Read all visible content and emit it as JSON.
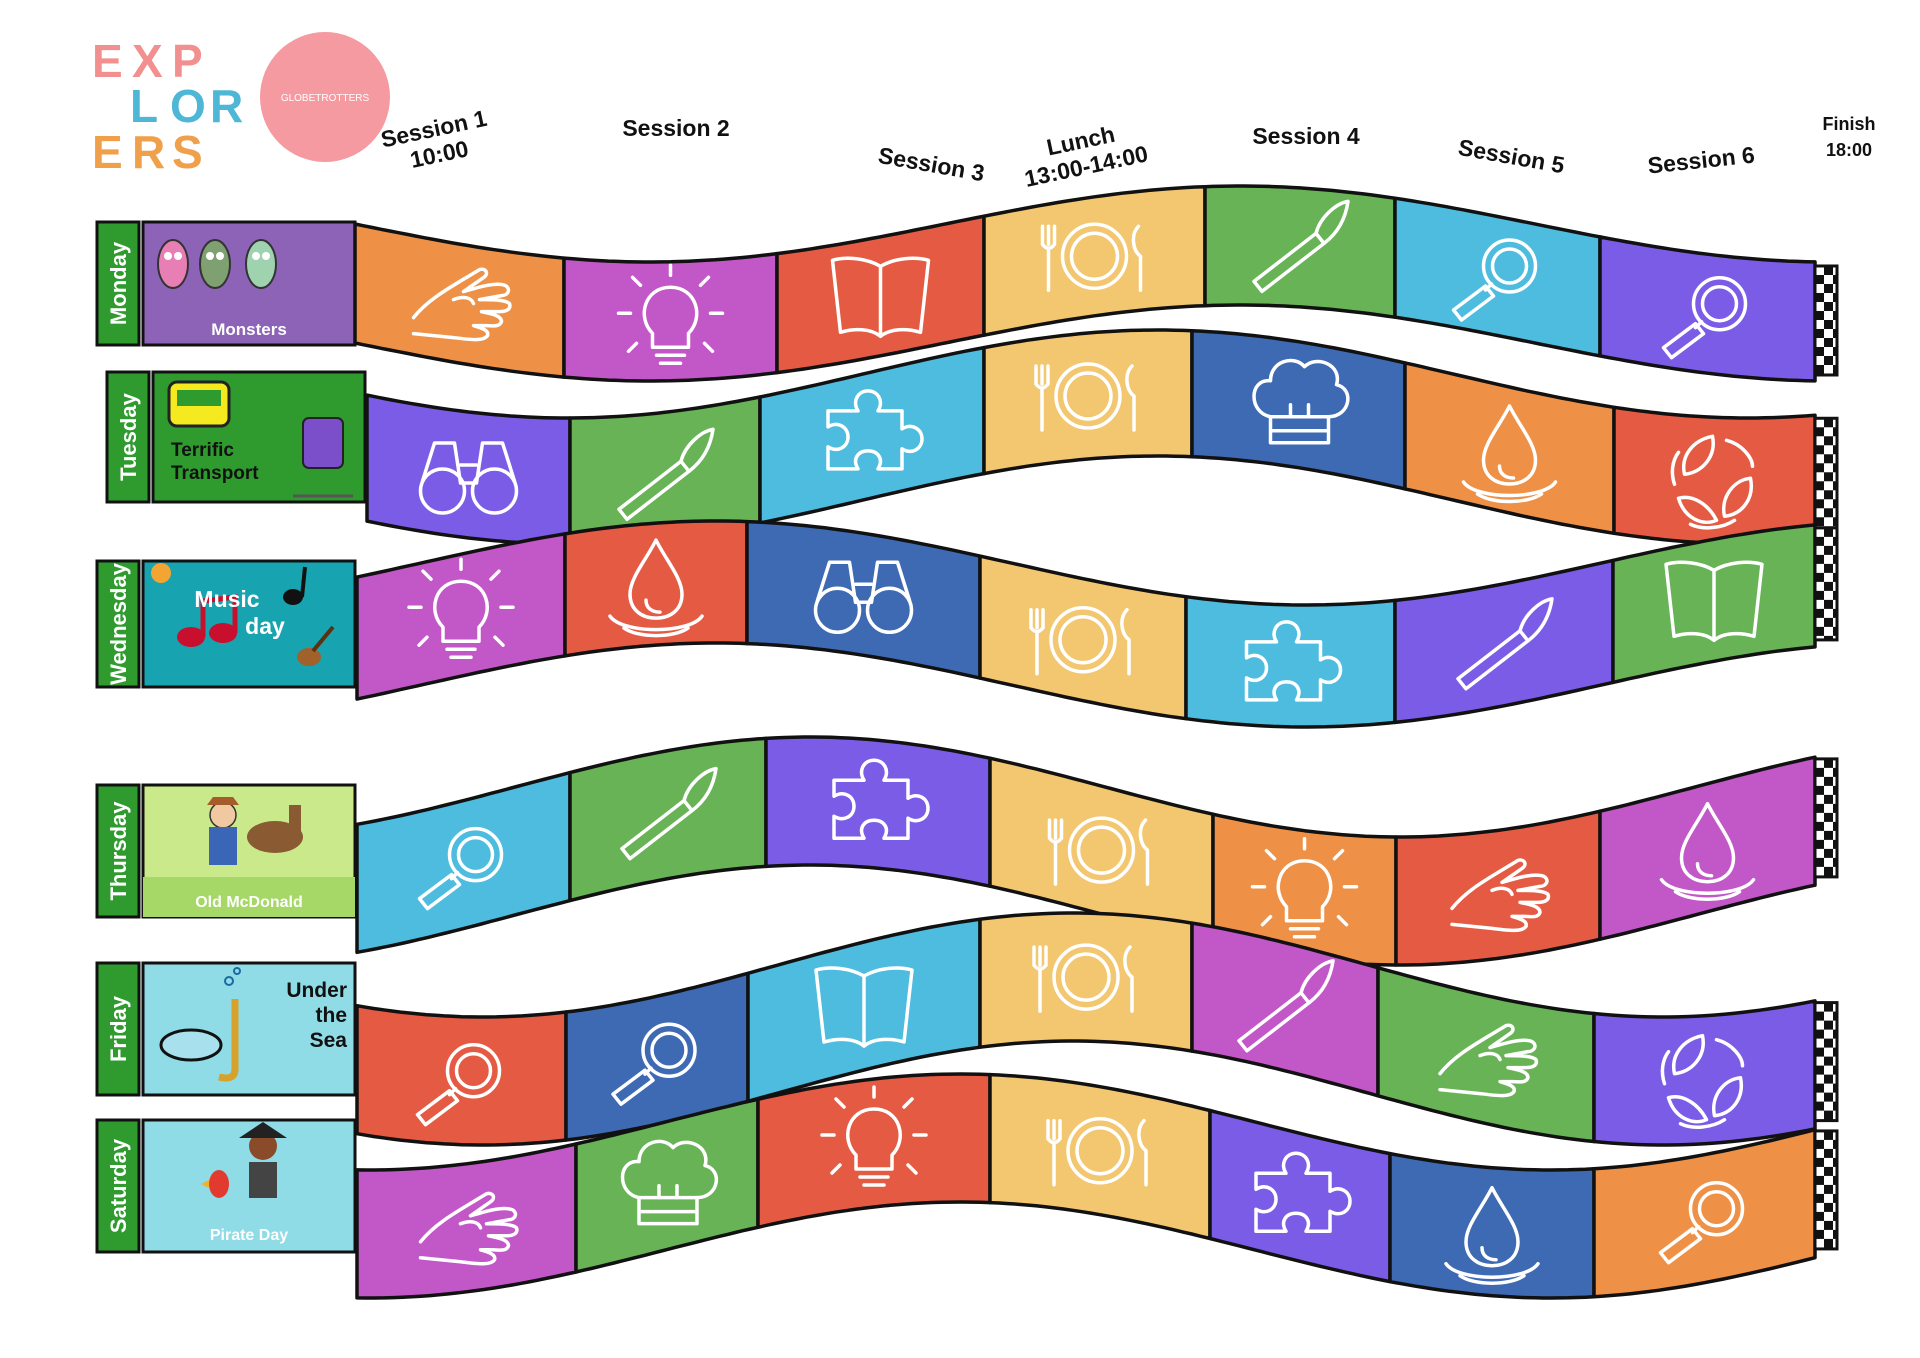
{
  "logo": {
    "rows": [
      [
        {
          "t": "E",
          "c": "#f28f8f"
        },
        {
          "t": "X",
          "c": "#f28f8f"
        },
        {
          "t": "P",
          "c": "#f28f8f"
        }
      ],
      [
        {
          "t": "L",
          "c": "#4fb7d6"
        },
        {
          "t": "O",
          "c": "#4fb7d6"
        },
        {
          "t": "R",
          "c": "#4fb7d6"
        }
      ],
      [
        {
          "t": "E",
          "c": "#f0a04b"
        },
        {
          "t": "R",
          "c": "#f0a04b"
        },
        {
          "t": "S",
          "c": "#f0a04b"
        }
      ]
    ],
    "badge_text": "GLOBETROTTERS",
    "badge_color": "#f59aa0"
  },
  "headers": [
    {
      "line1": "Session 1",
      "line2": "10:00"
    },
    {
      "line1": "Session 2",
      "line2": ""
    },
    {
      "line1": "Session 3",
      "line2": ""
    },
    {
      "line1": "Lunch",
      "line2": "13:00-14:00"
    },
    {
      "line1": "Session 4",
      "line2": ""
    },
    {
      "line1": "Session 5",
      "line2": ""
    },
    {
      "line1": "Session 6",
      "line2": ""
    },
    {
      "line1": "Finish",
      "line2": "18:00"
    }
  ],
  "colors": {
    "orange": "#ee9147",
    "purple": "#7b5ce6",
    "magenta": "#c257c8",
    "red": "#e55a43",
    "yellow": "#f3c670",
    "green": "#68b356",
    "lightblue": "#4ebcdf",
    "darkblue": "#3e69b3",
    "daygreen": "#2f9b2f"
  },
  "days": [
    {
      "name": "Monday",
      "theme": "Monsters",
      "theme_bg": "#8c63b6",
      "theme_fg": "#ffffff",
      "cells": [
        [
          "orange",
          "hand"
        ],
        [
          "magenta",
          "bulb"
        ],
        [
          "red",
          "book"
        ],
        [
          "yellow",
          "plate"
        ],
        [
          "green",
          "brush"
        ],
        [
          "lightblue",
          "magnifier"
        ],
        [
          "purple",
          "magnifier"
        ]
      ]
    },
    {
      "name": "Tuesday",
      "theme": "Terrific Transport",
      "theme_bg": "#2f9b2f",
      "theme_fg": "#111111",
      "cells": [
        [
          "purple",
          "binoculars"
        ],
        [
          "green",
          "brush"
        ],
        [
          "lightblue",
          "puzzle"
        ],
        [
          "yellow",
          "plate"
        ],
        [
          "darkblue",
          "chefhat"
        ],
        [
          "orange",
          "drop"
        ],
        [
          "red",
          "recycle"
        ]
      ]
    },
    {
      "name": "Wednesday",
      "theme": "Music day",
      "theme_bg": "#17a3b0",
      "theme_fg": "#ffffff",
      "cells": [
        [
          "magenta",
          "bulb"
        ],
        [
          "red",
          "drop"
        ],
        [
          "darkblue",
          "binoculars"
        ],
        [
          "yellow",
          "plate"
        ],
        [
          "lightblue",
          "puzzle"
        ],
        [
          "purple",
          "brush"
        ],
        [
          "green",
          "book"
        ]
      ]
    },
    {
      "name": "Thursday",
      "theme": "Old McDonald",
      "theme_bg": "#c9e98a",
      "theme_fg": "#ffffff",
      "cells": [
        [
          "lightblue",
          "magnifier"
        ],
        [
          "green",
          "brush"
        ],
        [
          "purple",
          "puzzle"
        ],
        [
          "yellow",
          "plate"
        ],
        [
          "orange",
          "bulb"
        ],
        [
          "red",
          "hand"
        ],
        [
          "magenta",
          "drop"
        ]
      ]
    },
    {
      "name": "Friday",
      "theme": "Under the Sea",
      "theme_bg": "#8fdbe6",
      "theme_fg": "#111111",
      "cells": [
        [
          "red",
          "magnifier"
        ],
        [
          "darkblue",
          "magnifier"
        ],
        [
          "lightblue",
          "book"
        ],
        [
          "yellow",
          "plate"
        ],
        [
          "magenta",
          "brush"
        ],
        [
          "green",
          "hand"
        ],
        [
          "purple",
          "recycle"
        ]
      ]
    },
    {
      "name": "Saturday",
      "theme": "Pirate Day",
      "theme_bg": "#8fdbe6",
      "theme_fg": "#ffffff",
      "cells": [
        [
          "magenta",
          "hand"
        ],
        [
          "green",
          "chefhat"
        ],
        [
          "red",
          "bulb"
        ],
        [
          "yellow",
          "plate"
        ],
        [
          "purple",
          "puzzle"
        ],
        [
          "darkblue",
          "drop"
        ],
        [
          "orange",
          "magnifier"
        ]
      ]
    }
  ]
}
